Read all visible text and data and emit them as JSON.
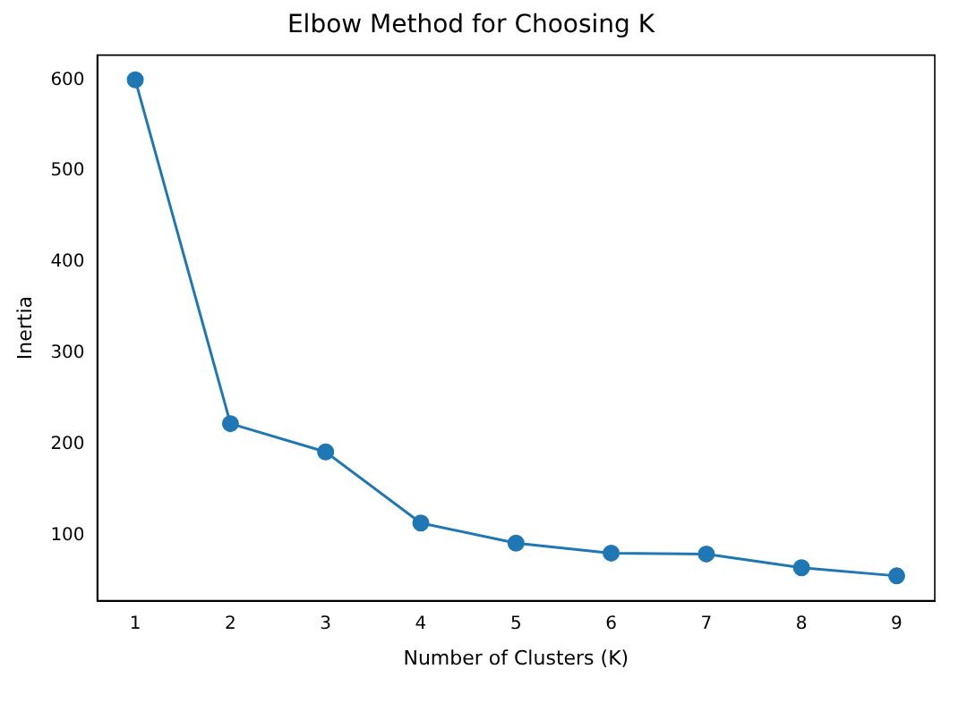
{
  "chart_data": {
    "type": "line",
    "title": "Elbow Method for Choosing K",
    "xlabel": "Number of Clusters (K)",
    "ylabel": "Inertia",
    "x": [
      1,
      2,
      3,
      4,
      5,
      6,
      7,
      8,
      9
    ],
    "series": [
      {
        "color": "#1f77b4",
        "values": [
          600,
          223,
          192,
          114,
          92,
          81,
          80,
          65,
          56
        ]
      }
    ],
    "xlim": [
      0.6,
      9.4
    ],
    "xticks": [
      1,
      2,
      3,
      4,
      5,
      6,
      7,
      8,
      9
    ],
    "ylim": [
      28.8,
      627.2
    ],
    "yticks": [
      100,
      200,
      300,
      400,
      500,
      600
    ],
    "marker": "circle",
    "line_style": "solid",
    "grid": false,
    "legend": false
  }
}
